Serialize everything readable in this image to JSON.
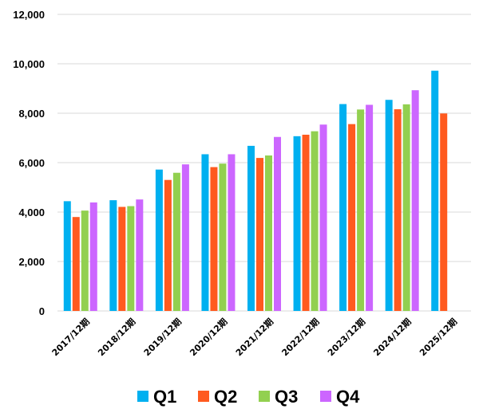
{
  "chart_data": {
    "type": "bar",
    "categories": [
      "2017/12期",
      "2018/12期",
      "2019/12期",
      "2020/12期",
      "2021/12期",
      "2022/12期",
      "2023/12期",
      "2024/12期",
      "2025/12期"
    ],
    "series": [
      {
        "name": "Q1",
        "color": "#00B0F0",
        "values": [
          4440,
          4480,
          5720,
          6340,
          6680,
          7070,
          8370,
          8540,
          9720
        ]
      },
      {
        "name": "Q2",
        "color": "#FF5A1F",
        "values": [
          3800,
          4210,
          5300,
          5820,
          6190,
          7130,
          7560,
          8160,
          7990
        ]
      },
      {
        "name": "Q3",
        "color": "#92D050",
        "values": [
          4060,
          4240,
          5590,
          5960,
          6290,
          7270,
          8150,
          8360,
          null
        ]
      },
      {
        "name": "Q4",
        "color": "#CC66FF",
        "values": [
          4390,
          4510,
          5930,
          6340,
          7040,
          7540,
          8340,
          8930,
          null
        ]
      }
    ],
    "y_ticks": [
      "0",
      "2,000",
      "4,000",
      "6,000",
      "8,000",
      "10,000",
      "12,000"
    ],
    "ylim": [
      0,
      12000
    ],
    "grid": true,
    "legend": "bottom"
  }
}
